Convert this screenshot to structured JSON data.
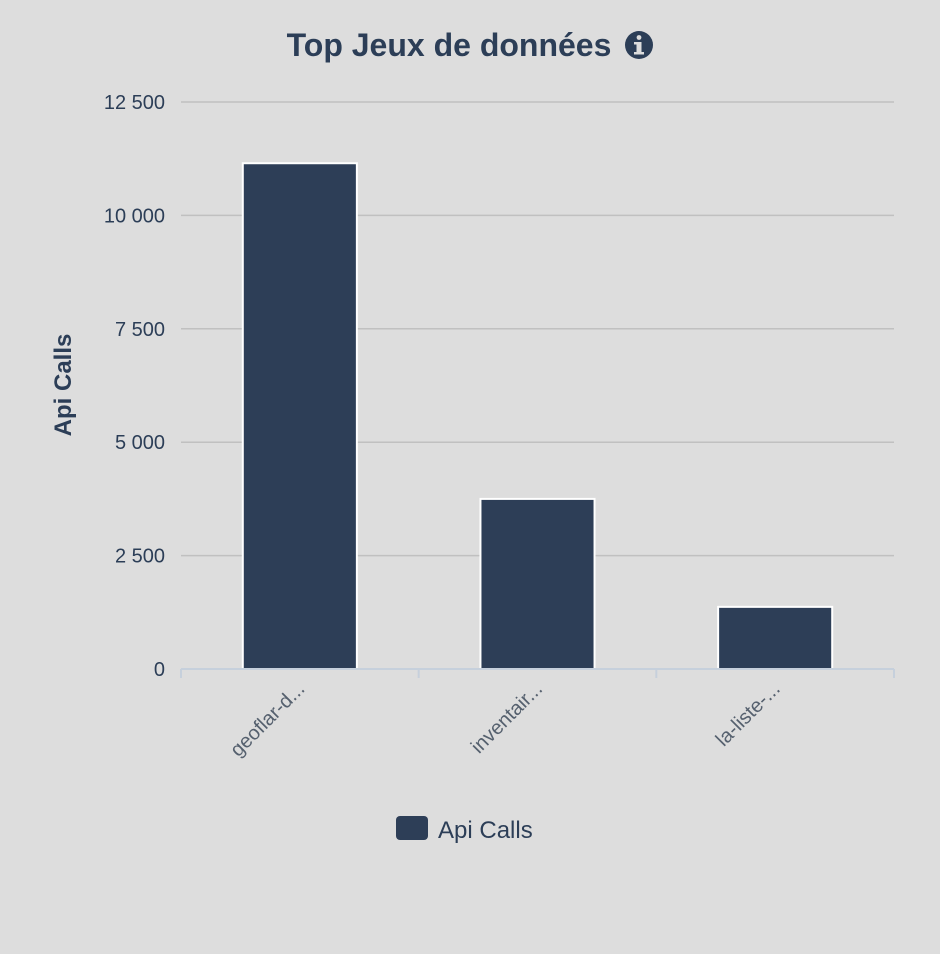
{
  "chart_data": {
    "type": "bar",
    "title": "Top Jeux de données",
    "title_icon": "info-circle-icon",
    "categories": [
      "geoflar-d...",
      "inventair...",
      "la-liste-..."
    ],
    "series": [
      {
        "name": "Api Calls",
        "values": [
          11150,
          3750,
          1370
        ]
      }
    ],
    "ylabel": "Api Calls",
    "xlabel": "",
    "ylim": [
      0,
      12500
    ],
    "yticks": [
      0,
      2500,
      5000,
      7500,
      10000,
      12500
    ],
    "ytick_labels": [
      "0",
      "2 500",
      "5 000",
      "7 500",
      "10 000",
      "12 500"
    ],
    "grid": true,
    "legend": {
      "position": "bottom-center",
      "label": "Api Calls"
    },
    "colors": {
      "bar": "#2d3e57",
      "background": "#dddddd",
      "grid": "#c0c0c0",
      "text": "#2c3e57"
    }
  }
}
